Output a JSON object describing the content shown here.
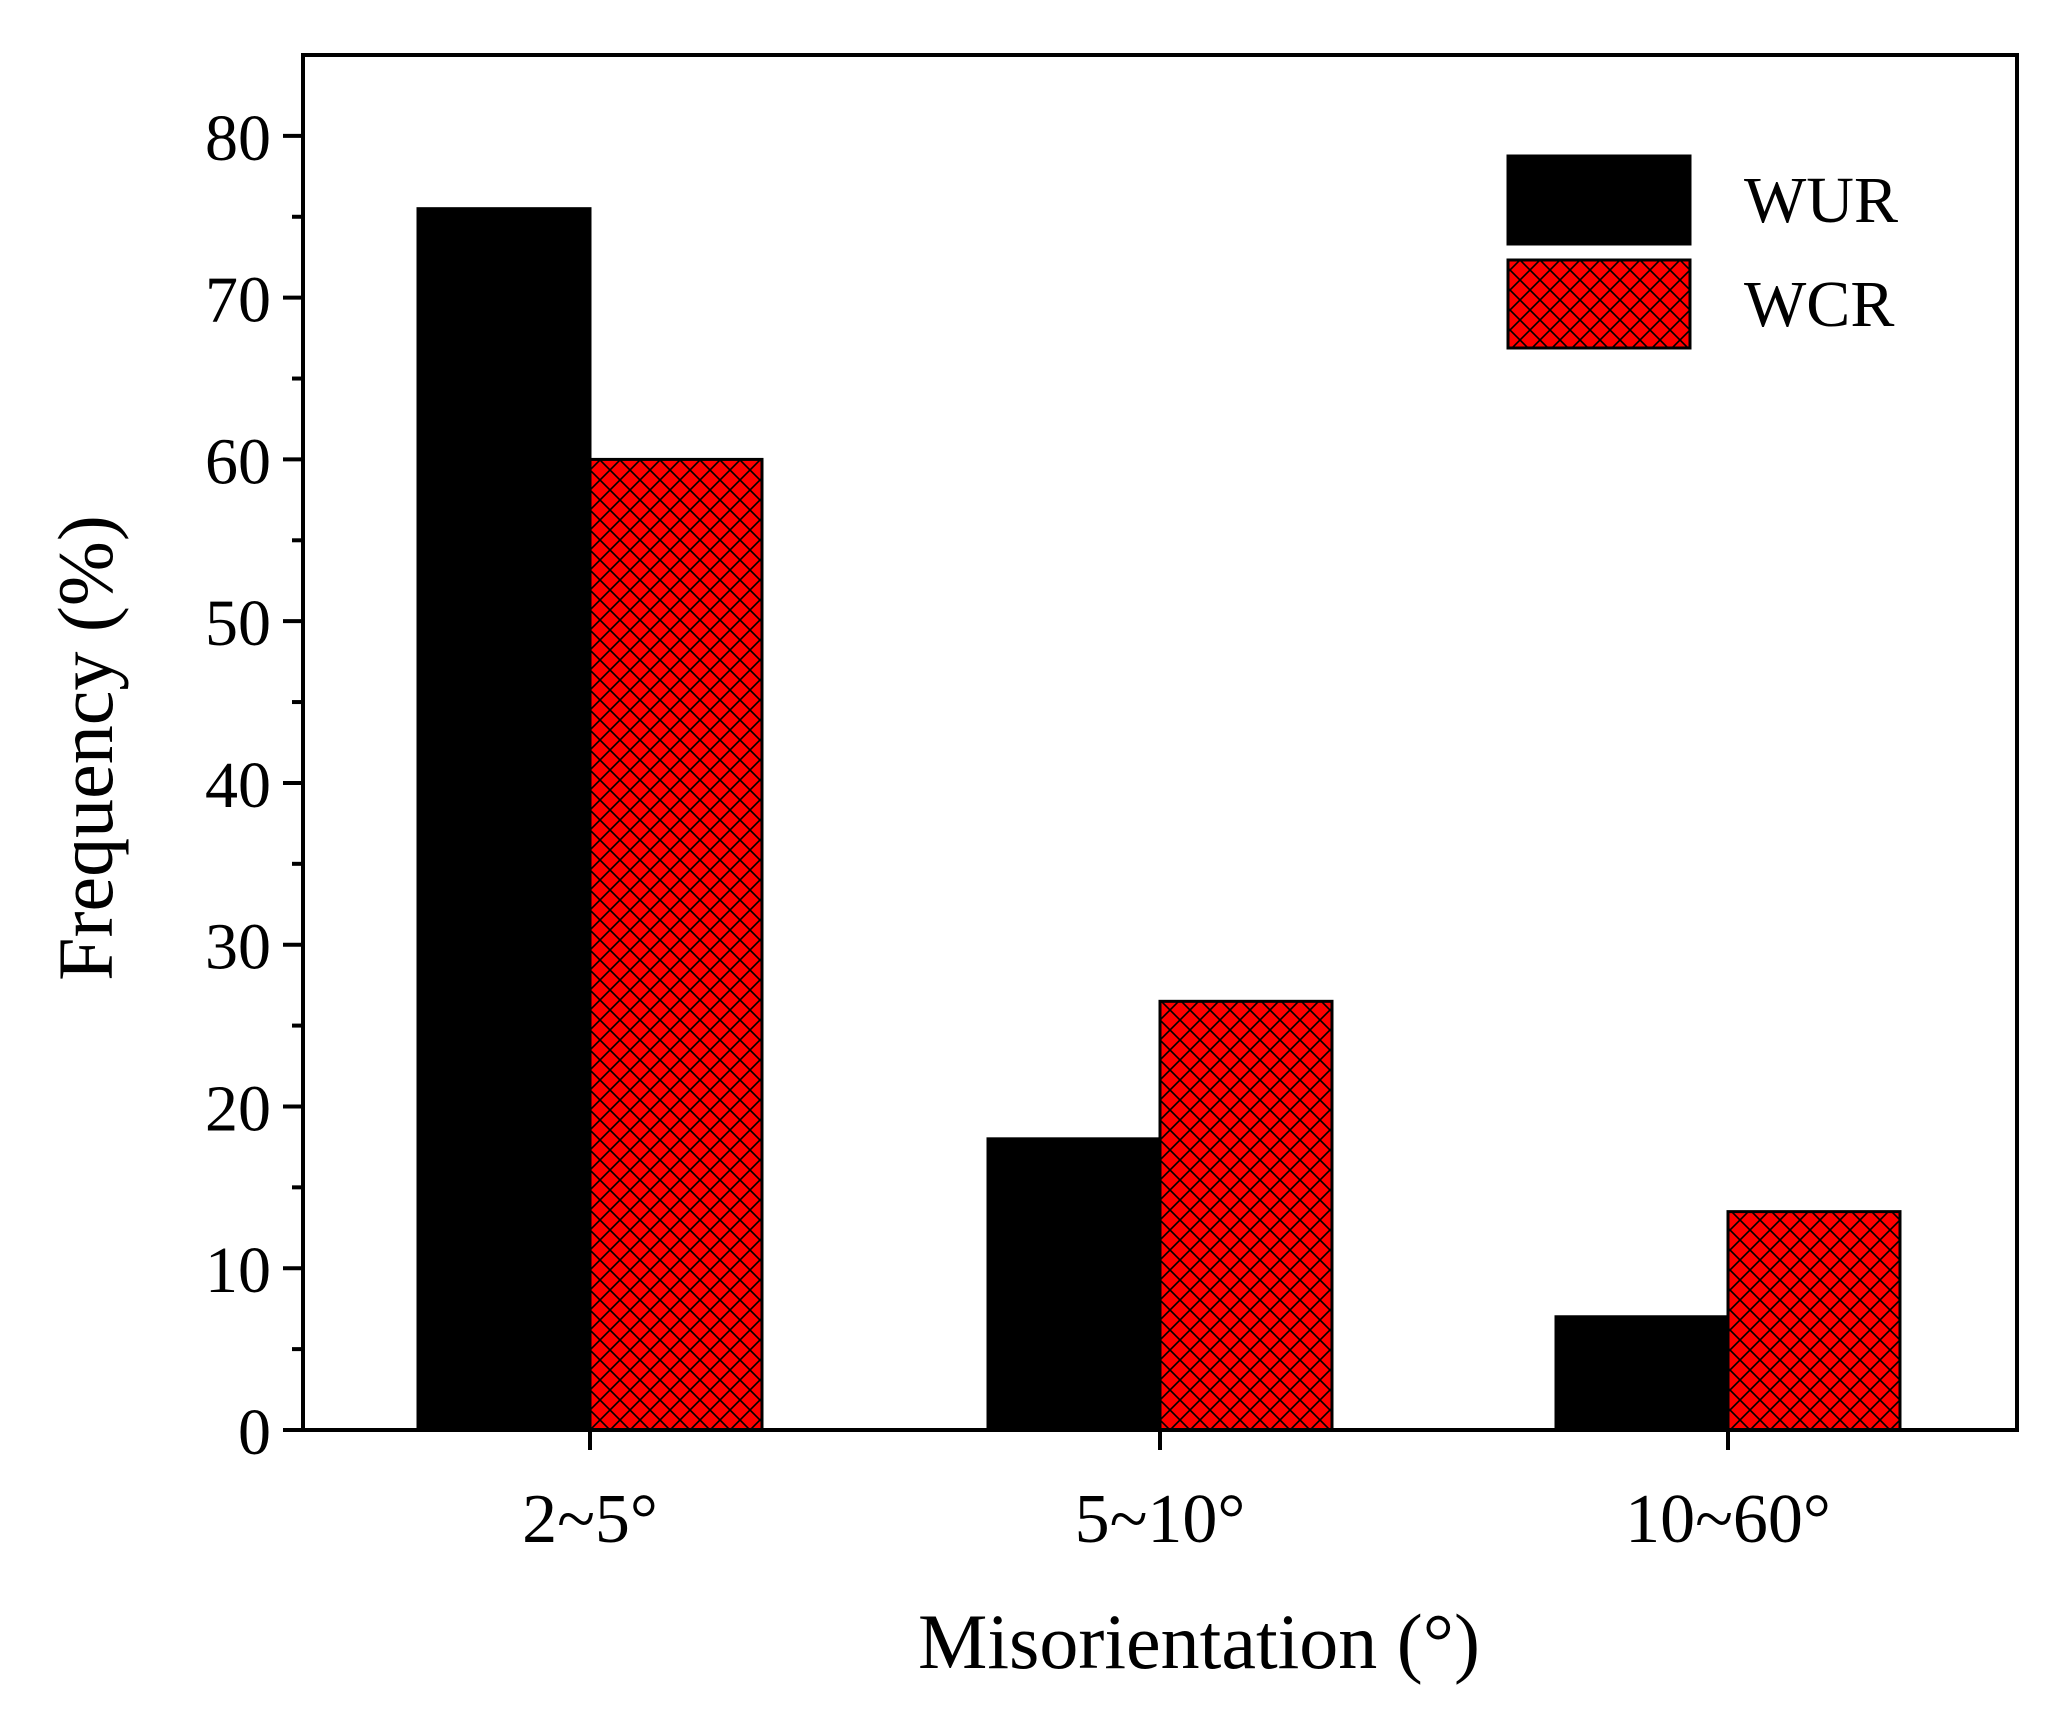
{
  "chart_data": {
    "type": "bar",
    "title": "",
    "xlabel": "Misorientation (°)",
    "ylabel": "Frequency (%)",
    "categories": [
      "2~5°",
      "5~10°",
      "10~60°"
    ],
    "ylim": [
      0,
      85
    ],
    "yticks": [
      0,
      10,
      20,
      30,
      40,
      50,
      60,
      70,
      80
    ],
    "legend_position": "top-right",
    "grid": false,
    "series": [
      {
        "name": "WUR",
        "values": [
          75.5,
          18.0,
          7.0
        ],
        "color": "#000000",
        "pattern": "solid"
      },
      {
        "name": "WCR",
        "values": [
          60.0,
          26.5,
          13.5
        ],
        "color": "#ff0000",
        "pattern": "crosshatch"
      }
    ]
  }
}
